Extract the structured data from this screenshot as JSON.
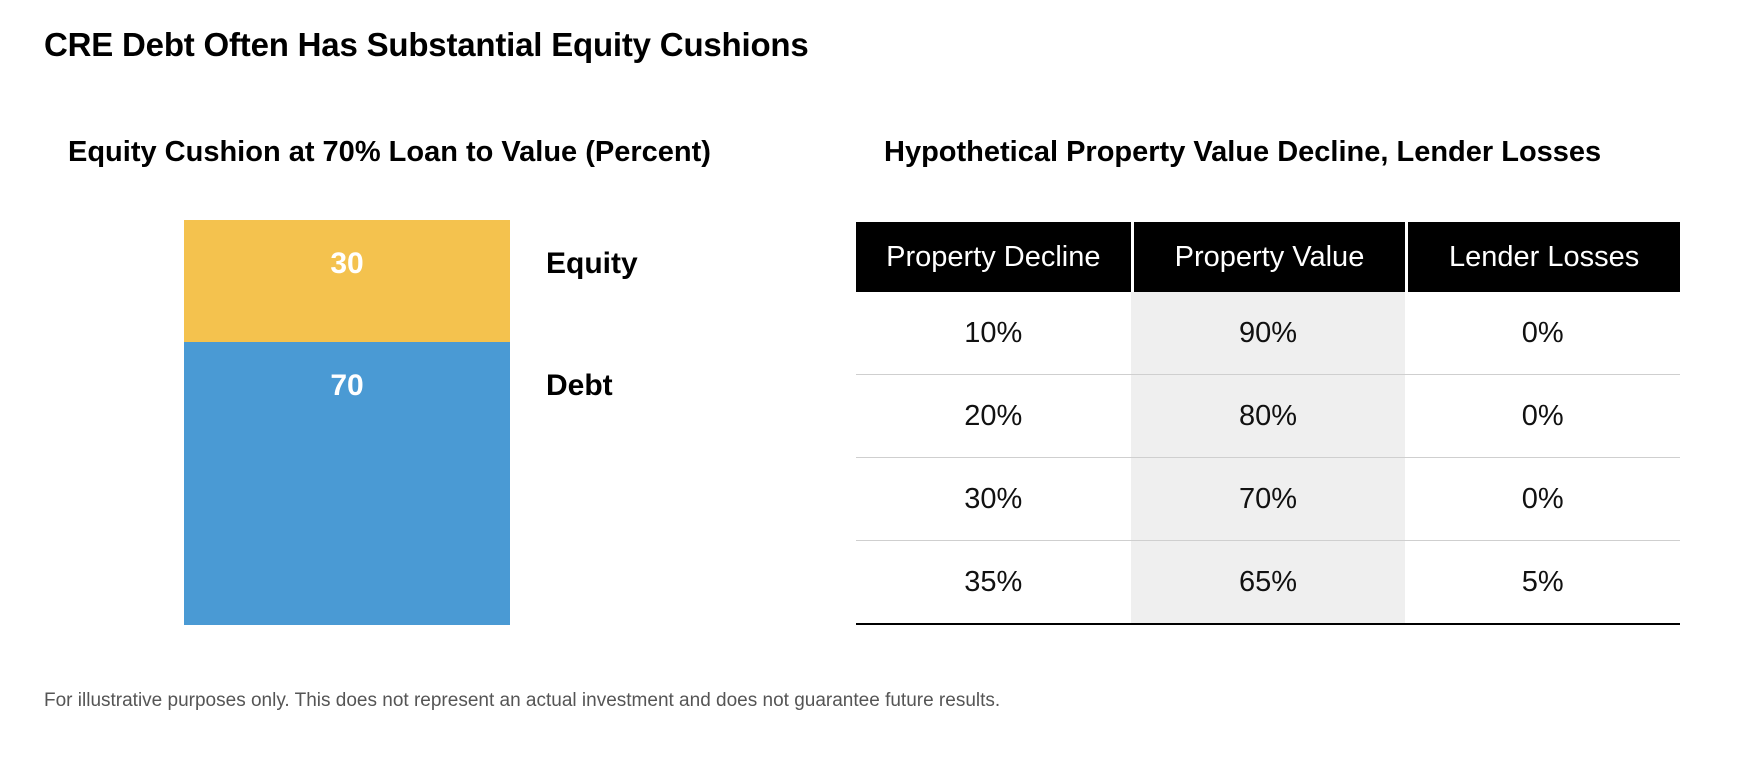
{
  "title": "CRE Debt Often Has Substantial Equity Cushions",
  "footnote": "For illustrative purposes only. This does not represent an actual investment and does not guarantee future results.",
  "chart_data": [
    {
      "type": "bar",
      "title": "Equity Cushion at 70% Loan to Value (Percent)",
      "stacked": true,
      "categories": [
        "Loan to Value"
      ],
      "series": [
        {
          "name": "Debt",
          "values": [
            70
          ],
          "color": "#4A9AD4"
        },
        {
          "name": "Equity",
          "values": [
            30
          ],
          "color": "#F4C24E"
        }
      ],
      "ylim": [
        0,
        100
      ],
      "grid": false,
      "legend": "right"
    },
    {
      "type": "table",
      "title": "Hypothetical Property Value Decline, Lender Losses",
      "columns": [
        "Property Decline",
        "Property Value",
        "Lender Losses"
      ],
      "rows": [
        [
          "10%",
          "90%",
          "0%"
        ],
        [
          "20%",
          "80%",
          "0%"
        ],
        [
          "30%",
          "70%",
          "0%"
        ],
        [
          "35%",
          "65%",
          "5%"
        ]
      ]
    }
  ],
  "colors": {
    "equity": "#F4C24E",
    "debt": "#4A9AD4",
    "header_bg": "#000000",
    "shaded_column": "#EFEFEF"
  }
}
